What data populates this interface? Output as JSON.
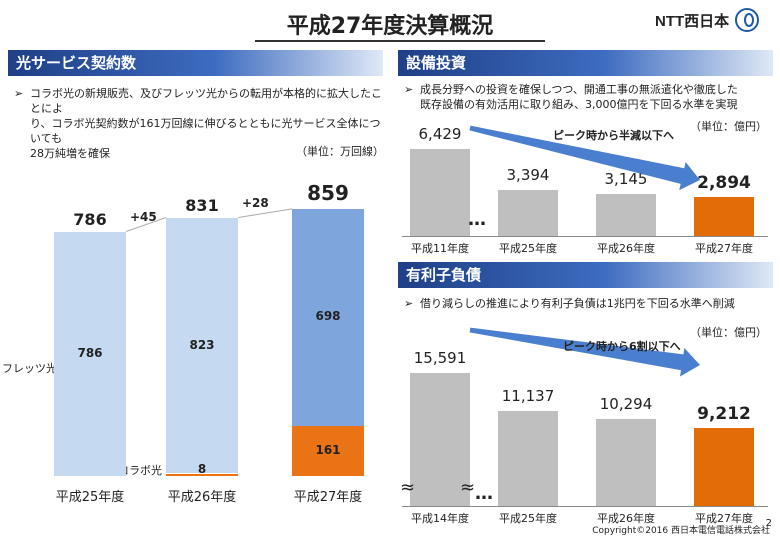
{
  "page": {
    "title": "平成27年度決算概況",
    "logo_text": "NTT西日本",
    "footer": "Copyright©2016 西日本電信電話株式会社",
    "page_no": "2"
  },
  "left": {
    "header": "光サービス契約数",
    "bullet_mark": "➢",
    "bullet_lines": [
      "コラボ光の新規販売、及びフレッツ光からの転用が本格的に拡大したことによ",
      "り、コラボ光契約数が161万回線に伸びるとともに光サービス全体についても",
      "28万純増を確保"
    ],
    "unit": "（単位：万回線）",
    "series_label_flets": "フレッツ光",
    "series_label_collabo": "コラボ光"
  },
  "capex": {
    "header": "設備投資",
    "bullet_mark": "➢",
    "bullet_lines": [
      "成長分野への投資を確保しつつ、開通工事の無派遣化や徹底した",
      "既存設備の有効活用に取り組み、3,000億円を下回る水準を実現"
    ],
    "unit": "（単位：億円）",
    "arrow_note": "ピーク時から半減以下へ",
    "ellipsis": "…"
  },
  "debt": {
    "header": "有利子負債",
    "bullet_mark": "➢",
    "bullet_lines": [
      "借り減らしの推進により有利子負債は1兆円を下回る水準へ削減"
    ],
    "unit": "（単位：億円）",
    "arrow_note": "ピーク時から6割以下へ",
    "ellipsis": "…",
    "tilde": "≈"
  },
  "chart_data": [
    {
      "type": "bar",
      "stacked": true,
      "categories": [
        "平成25年度",
        "平成26年度",
        "平成27年度"
      ],
      "series": [
        {
          "name": "フレッツ光",
          "values": [
            786,
            823,
            698
          ]
        },
        {
          "name": "コラボ光",
          "values": [
            0,
            8,
            161
          ]
        }
      ],
      "totals": [
        786,
        831,
        859
      ],
      "increments": [
        "+45",
        "+28"
      ],
      "colors": {
        "flets": "#c5d9f1",
        "flets_highlight": "#7ea6dc",
        "collabo": "#ea7316"
      }
    },
    {
      "type": "bar",
      "categories": [
        "平成11年度",
        "平成25年度",
        "平成26年度",
        "平成27年度"
      ],
      "values": [
        6429,
        3394,
        3145,
        2894
      ],
      "value_labels": [
        "6,429",
        "3,394",
        "3,145",
        "2,894"
      ],
      "colors": {
        "base": "#bfbfbf",
        "highlight": "#e36c09"
      }
    },
    {
      "type": "bar",
      "categories": [
        "平成14年度",
        "平成25年度",
        "平成26年度",
        "平成27年度"
      ],
      "values": [
        15591,
        11137,
        10294,
        9212
      ],
      "value_labels": [
        "15,591",
        "11,137",
        "10,294",
        "9,212"
      ],
      "colors": {
        "base": "#bfbfbf",
        "highlight": "#e36c09"
      }
    }
  ]
}
